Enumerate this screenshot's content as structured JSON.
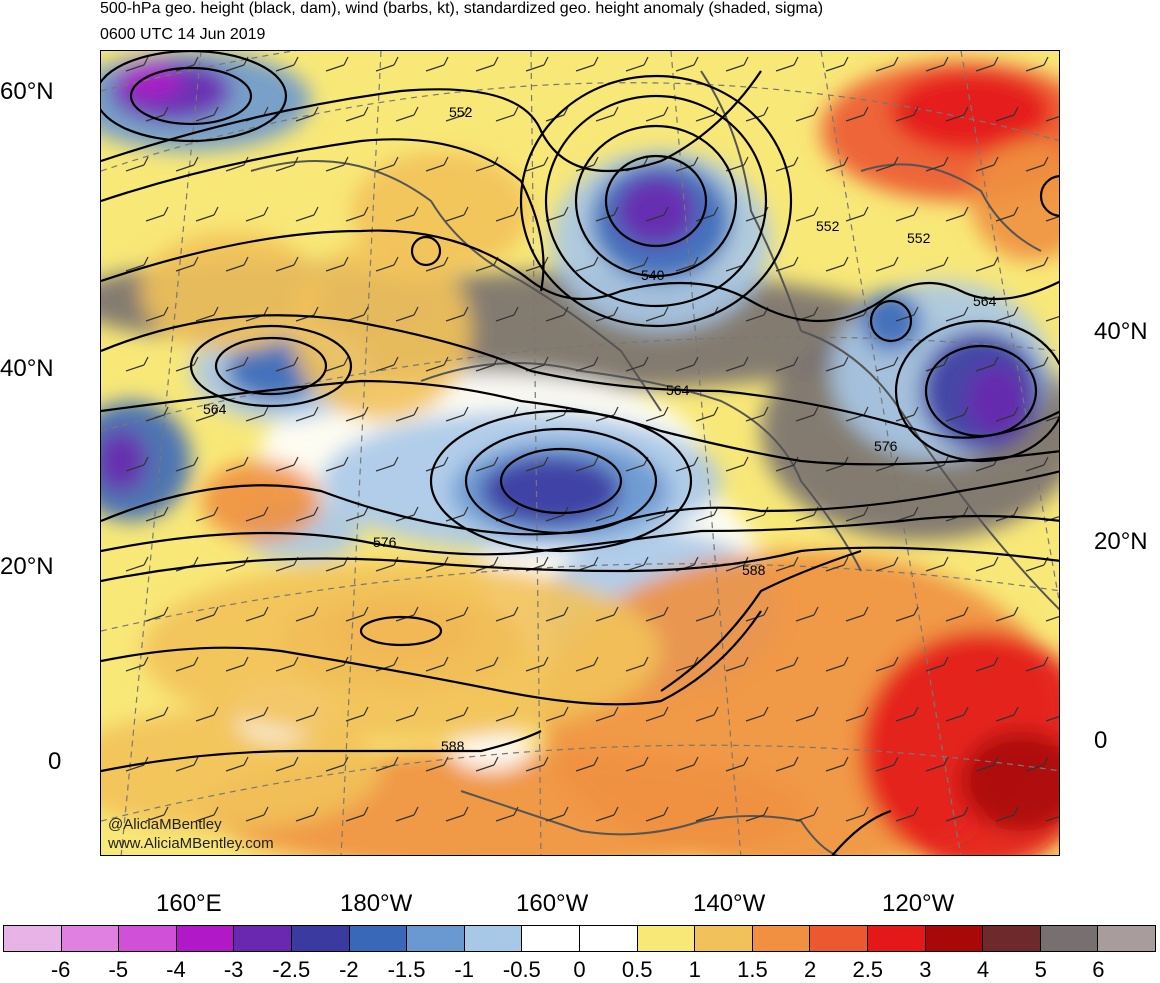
{
  "header": {
    "title": "500-hPa geo. height (black, dam), wind (barbs, kt), standardized geo. height anomaly (shaded, sigma)",
    "valid_time": "0600 UTC 14 Jun 2019"
  },
  "map": {
    "left_lat_labels": [
      "60°N",
      "40°N",
      "20°N",
      "0"
    ],
    "right_lat_labels": [
      "40°N",
      "20°N",
      "0"
    ],
    "lon_labels": [
      "160°E",
      "180°W",
      "160°W",
      "140°W",
      "120°W"
    ],
    "contour_labels": [
      "552",
      "540",
      "552",
      "552",
      "564",
      "564",
      "564",
      "576",
      "576",
      "588",
      "588"
    ],
    "credits": [
      "@AliciaMBentley",
      "www.AliciaMBentley.com"
    ]
  },
  "colorbar": {
    "labels": [
      "-6",
      "-5",
      "-4",
      "-3",
      "-2.5",
      "-2",
      "-1.5",
      "-1",
      "-0.5",
      "0",
      "0.5",
      "1",
      "1.5",
      "2",
      "2.5",
      "3",
      "4",
      "5",
      "6"
    ],
    "colors": [
      "#e8b4e8",
      "#e080e0",
      "#d050d8",
      "#b018c8",
      "#6a28b0",
      "#3a3aa0",
      "#3a68b8",
      "#6a98d0",
      "#a8c8e8",
      "#ffffff",
      "#ffffff",
      "#f8e878",
      "#f2c25a",
      "#f09040",
      "#ec5830",
      "#e41818",
      "#a80808",
      "#6e2a2a",
      "#787070",
      "#a89c9c"
    ]
  }
}
